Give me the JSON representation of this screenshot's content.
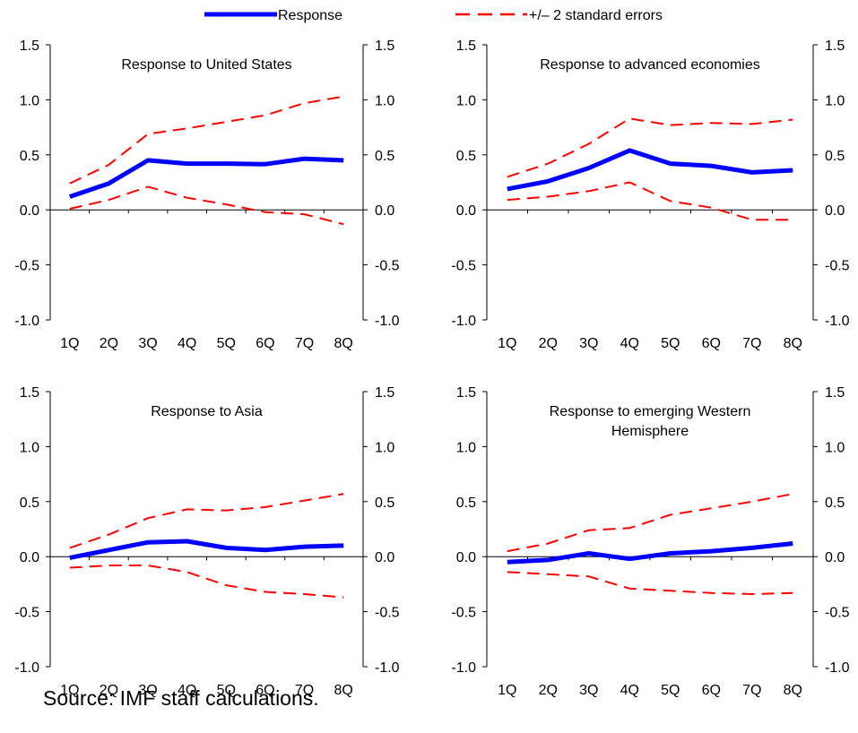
{
  "legend": {
    "response_label": "Response",
    "se_label": "+/– 2 standard errors",
    "response_color": "#0000ff",
    "se_color": "#ff0000"
  },
  "source_note": "Source: IMF staff calculations.",
  "chart_data": [
    {
      "type": "line",
      "title": "Response to United States",
      "categories": [
        "1Q",
        "2Q",
        "3Q",
        "4Q",
        "5Q",
        "6Q",
        "7Q",
        "8Q"
      ],
      "ylim": [
        -1.0,
        1.5
      ],
      "yticks": [
        "-1.0",
        "-0.5",
        "0.0",
        "0.5",
        "1.0",
        "1.5"
      ],
      "series": [
        {
          "name": "Response",
          "style": "solid",
          "color": "#0000ff",
          "values": [
            0.12,
            0.24,
            0.45,
            0.42,
            0.42,
            0.415,
            0.465,
            0.45
          ]
        },
        {
          "name": "+/– 2 standard errors",
          "style": "dashed",
          "color": "#ff0000",
          "values": [
            0.24,
            0.41,
            0.69,
            0.74,
            0.8,
            0.86,
            0.97,
            1.03
          ]
        },
        {
          "name": "+/– 2 standard errors",
          "style": "dashed",
          "color": "#ff0000",
          "values": [
            0.01,
            0.09,
            0.21,
            0.11,
            0.05,
            -0.02,
            -0.04,
            -0.13
          ]
        }
      ]
    },
    {
      "type": "line",
      "title": "Response to advanced economies",
      "categories": [
        "1Q",
        "2Q",
        "3Q",
        "4Q",
        "5Q",
        "6Q",
        "7Q",
        "8Q"
      ],
      "ylim": [
        -1.0,
        1.5
      ],
      "yticks": [
        "-1.0",
        "-0.5",
        "0.0",
        "0.5",
        "1.0",
        "1.5"
      ],
      "series": [
        {
          "name": "Response",
          "style": "solid",
          "color": "#0000ff",
          "values": [
            0.19,
            0.26,
            0.38,
            0.54,
            0.42,
            0.4,
            0.34,
            0.36
          ]
        },
        {
          "name": "+/– 2 standard errors",
          "style": "dashed",
          "color": "#ff0000",
          "values": [
            0.3,
            0.42,
            0.6,
            0.83,
            0.77,
            0.79,
            0.78,
            0.82
          ]
        },
        {
          "name": "+/– 2 standard errors",
          "style": "dashed",
          "color": "#ff0000",
          "values": [
            0.09,
            0.12,
            0.17,
            0.25,
            0.08,
            0.02,
            -0.09,
            -0.09
          ]
        }
      ]
    },
    {
      "type": "line",
      "title": "Response to Asia",
      "categories": [
        "1Q",
        "2Q",
        "3Q",
        "4Q",
        "5Q",
        "6Q",
        "7Q",
        "8Q"
      ],
      "ylim": [
        -1.0,
        1.5
      ],
      "yticks": [
        "-1.0",
        "-0.5",
        "0.0",
        "0.5",
        "1.0",
        "1.5"
      ],
      "series": [
        {
          "name": "Response",
          "style": "solid",
          "color": "#0000ff",
          "values": [
            -0.01,
            0.06,
            0.13,
            0.14,
            0.08,
            0.06,
            0.09,
            0.1
          ]
        },
        {
          "name": "+/– 2 standard errors",
          "style": "dashed",
          "color": "#ff0000",
          "values": [
            0.08,
            0.2,
            0.35,
            0.43,
            0.42,
            0.45,
            0.51,
            0.57
          ]
        },
        {
          "name": "+/– 2 standard errors",
          "style": "dashed",
          "color": "#ff0000",
          "values": [
            -0.1,
            -0.08,
            -0.08,
            -0.14,
            -0.26,
            -0.32,
            -0.34,
            -0.37
          ]
        }
      ]
    },
    {
      "type": "line",
      "title": "Response to emerging Western Hemisphere",
      "title_lines": [
        "Response to emerging Western",
        "Hemisphere"
      ],
      "categories": [
        "1Q",
        "2Q",
        "3Q",
        "4Q",
        "5Q",
        "6Q",
        "7Q",
        "8Q"
      ],
      "ylim": [
        -1.0,
        1.5
      ],
      "yticks": [
        "-1.0",
        "-0.5",
        "0.0",
        "0.5",
        "1.0",
        "1.5"
      ],
      "series": [
        {
          "name": "Response",
          "style": "solid",
          "color": "#0000ff",
          "values": [
            -0.05,
            -0.03,
            0.03,
            -0.02,
            0.03,
            0.05,
            0.08,
            0.12
          ]
        },
        {
          "name": "+/– 2 standard errors",
          "style": "dashed",
          "color": "#ff0000",
          "values": [
            0.05,
            0.12,
            0.24,
            0.26,
            0.38,
            0.44,
            0.5,
            0.57
          ]
        },
        {
          "name": "+/– 2 standard errors",
          "style": "dashed",
          "color": "#ff0000",
          "values": [
            -0.14,
            -0.16,
            -0.18,
            -0.29,
            -0.31,
            -0.33,
            -0.34,
            -0.33
          ]
        }
      ]
    }
  ]
}
